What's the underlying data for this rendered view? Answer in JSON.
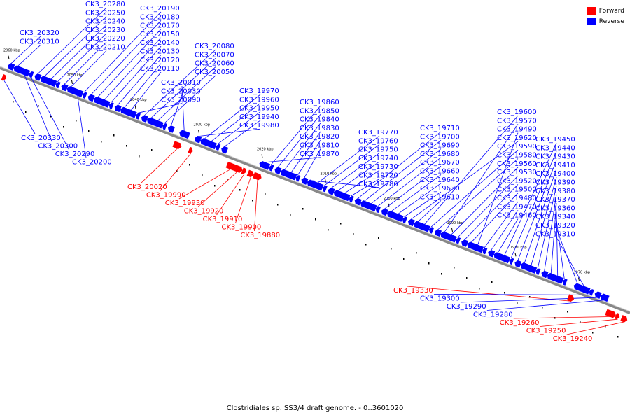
{
  "colors": {
    "forward": "#ff0000",
    "reverse": "#0000ff",
    "axis": "#888888"
  },
  "legend": {
    "forward_label": "Forward",
    "reverse_label": "Reverse"
  },
  "caption": "Clostridiales sp. SS3/4 draft genome. - 0..3601020",
  "ticks": [
    {
      "label": "2060 kbp",
      "kbp": 2060
    },
    {
      "label": "2050 kbp",
      "kbp": 2050
    },
    {
      "label": "2040 kbp",
      "kbp": 2040
    },
    {
      "label": "2030 kbp",
      "kbp": 2030
    },
    {
      "label": "2020 kbp",
      "kbp": 2020
    },
    {
      "label": "2010 kbp",
      "kbp": 2010
    },
    {
      "label": "2000 kbp",
      "kbp": 2000
    },
    {
      "label": "1990 kbp",
      "kbp": 1990
    },
    {
      "label": "1980 kbp",
      "kbp": 1980
    },
    {
      "label": "1970 kbp",
      "kbp": 1970
    }
  ],
  "genes": [
    {
      "name": "CK3_20330",
      "strand": "forward",
      "label_color": "reverse"
    },
    {
      "name": "CK3_20320",
      "strand": "reverse"
    },
    {
      "name": "CK3_20310",
      "strand": "reverse"
    },
    {
      "name": "CK3_20300",
      "strand": "reverse"
    },
    {
      "name": "CK3_20290",
      "strand": "reverse"
    },
    {
      "name": "CK3_20280",
      "strand": "reverse"
    },
    {
      "name": "CK3_20250",
      "strand": "reverse"
    },
    {
      "name": "CK3_20240",
      "strand": "reverse"
    },
    {
      "name": "CK3_20230",
      "strand": "reverse"
    },
    {
      "name": "CK3_20220",
      "strand": "reverse"
    },
    {
      "name": "CK3_20210",
      "strand": "reverse"
    },
    {
      "name": "CK3_20200",
      "strand": "reverse"
    },
    {
      "name": "CK3_20190",
      "strand": "reverse"
    },
    {
      "name": "CK3_20180",
      "strand": "reverse"
    },
    {
      "name": "CK3_20170",
      "strand": "reverse"
    },
    {
      "name": "CK3_20150",
      "strand": "reverse"
    },
    {
      "name": "CK3_20140",
      "strand": "reverse"
    },
    {
      "name": "CK3_20130",
      "strand": "reverse"
    },
    {
      "name": "CK3_20120",
      "strand": "reverse"
    },
    {
      "name": "CK3_20110",
      "strand": "reverse"
    },
    {
      "name": "CK3_20090",
      "strand": "reverse"
    },
    {
      "name": "CK3_20080",
      "strand": "reverse"
    },
    {
      "name": "CK3_20070",
      "strand": "reverse"
    },
    {
      "name": "CK3_20060",
      "strand": "reverse"
    },
    {
      "name": "CK3_20050",
      "strand": "reverse"
    },
    {
      "name": "CK3_20030",
      "strand": "reverse"
    },
    {
      "name": "CK3_20020",
      "strand": "forward"
    },
    {
      "name": "CK3_20010",
      "strand": "reverse"
    },
    {
      "name": "CK3_19990",
      "strand": "forward"
    },
    {
      "name": "CK3_19980",
      "strand": "reverse"
    },
    {
      "name": "CK3_19970",
      "strand": "reverse"
    },
    {
      "name": "CK3_19960",
      "strand": "reverse"
    },
    {
      "name": "CK3_19950",
      "strand": "reverse"
    },
    {
      "name": "CK3_19940",
      "strand": "reverse"
    },
    {
      "name": "CK3_19930",
      "strand": "forward"
    },
    {
      "name": "CK3_19920",
      "strand": "forward"
    },
    {
      "name": "CK3_19910",
      "strand": "forward"
    },
    {
      "name": "CK3_19900",
      "strand": "forward"
    },
    {
      "name": "CK3_19880",
      "strand": "forward"
    },
    {
      "name": "CK3_19870",
      "strand": "reverse"
    },
    {
      "name": "CK3_19860",
      "strand": "reverse"
    },
    {
      "name": "CK3_19850",
      "strand": "reverse"
    },
    {
      "name": "CK3_19840",
      "strand": "reverse"
    },
    {
      "name": "CK3_19830",
      "strand": "reverse"
    },
    {
      "name": "CK3_19820",
      "strand": "reverse"
    },
    {
      "name": "CK3_19810",
      "strand": "reverse"
    },
    {
      "name": "CK3_19780",
      "strand": "reverse"
    },
    {
      "name": "CK3_19770",
      "strand": "reverse"
    },
    {
      "name": "CK3_19760",
      "strand": "reverse"
    },
    {
      "name": "CK3_19750",
      "strand": "reverse"
    },
    {
      "name": "CK3_19740",
      "strand": "reverse"
    },
    {
      "name": "CK3_19730",
      "strand": "reverse"
    },
    {
      "name": "CK3_19720",
      "strand": "reverse"
    },
    {
      "name": "CK3_19710",
      "strand": "reverse"
    },
    {
      "name": "CK3_19700",
      "strand": "reverse"
    },
    {
      "name": "CK3_19690",
      "strand": "reverse"
    },
    {
      "name": "CK3_19680",
      "strand": "reverse"
    },
    {
      "name": "CK3_19670",
      "strand": "reverse"
    },
    {
      "name": "CK3_19660",
      "strand": "reverse"
    },
    {
      "name": "CK3_19640",
      "strand": "reverse"
    },
    {
      "name": "CK3_19630",
      "strand": "reverse"
    },
    {
      "name": "CK3_19620",
      "strand": "reverse"
    },
    {
      "name": "CK3_19610",
      "strand": "reverse"
    },
    {
      "name": "CK3_19600",
      "strand": "reverse"
    },
    {
      "name": "CK3_19590",
      "strand": "reverse"
    },
    {
      "name": "CK3_19580",
      "strand": "reverse"
    },
    {
      "name": "CK3_19570",
      "strand": "reverse"
    },
    {
      "name": "CK3_19560",
      "strand": "reverse"
    },
    {
      "name": "CK3_19530",
      "strand": "reverse"
    },
    {
      "name": "CK3_19520",
      "strand": "reverse"
    },
    {
      "name": "CK3_19500",
      "strand": "reverse"
    },
    {
      "name": "CK3_19490",
      "strand": "reverse"
    },
    {
      "name": "CK3_19480",
      "strand": "reverse"
    },
    {
      "name": "CK3_19470",
      "strand": "reverse"
    },
    {
      "name": "CK3_19460",
      "strand": "reverse"
    },
    {
      "name": "CK3_19450",
      "strand": "reverse"
    },
    {
      "name": "CK3_19440",
      "strand": "reverse"
    },
    {
      "name": "CK3_19430",
      "strand": "reverse"
    },
    {
      "name": "CK3_19410",
      "strand": "reverse"
    },
    {
      "name": "CK3_19400",
      "strand": "reverse"
    },
    {
      "name": "CK3_19390",
      "strand": "reverse"
    },
    {
      "name": "CK3_19380",
      "strand": "reverse"
    },
    {
      "name": "CK3_19370",
      "strand": "reverse"
    },
    {
      "name": "CK3_19360",
      "strand": "reverse"
    },
    {
      "name": "CK3_19340",
      "strand": "reverse"
    },
    {
      "name": "CK3_19330",
      "strand": "forward"
    },
    {
      "name": "CK3_19320",
      "strand": "reverse"
    },
    {
      "name": "CK3_19310",
      "strand": "reverse"
    },
    {
      "name": "CK3_19300",
      "strand": "reverse"
    },
    {
      "name": "CK3_19290",
      "strand": "reverse"
    },
    {
      "name": "CK3_19280",
      "strand": "reverse"
    },
    {
      "name": "CK3_19260",
      "strand": "forward"
    },
    {
      "name": "CK3_19250",
      "strand": "forward"
    },
    {
      "name": "CK3_19240",
      "strand": "forward"
    }
  ]
}
